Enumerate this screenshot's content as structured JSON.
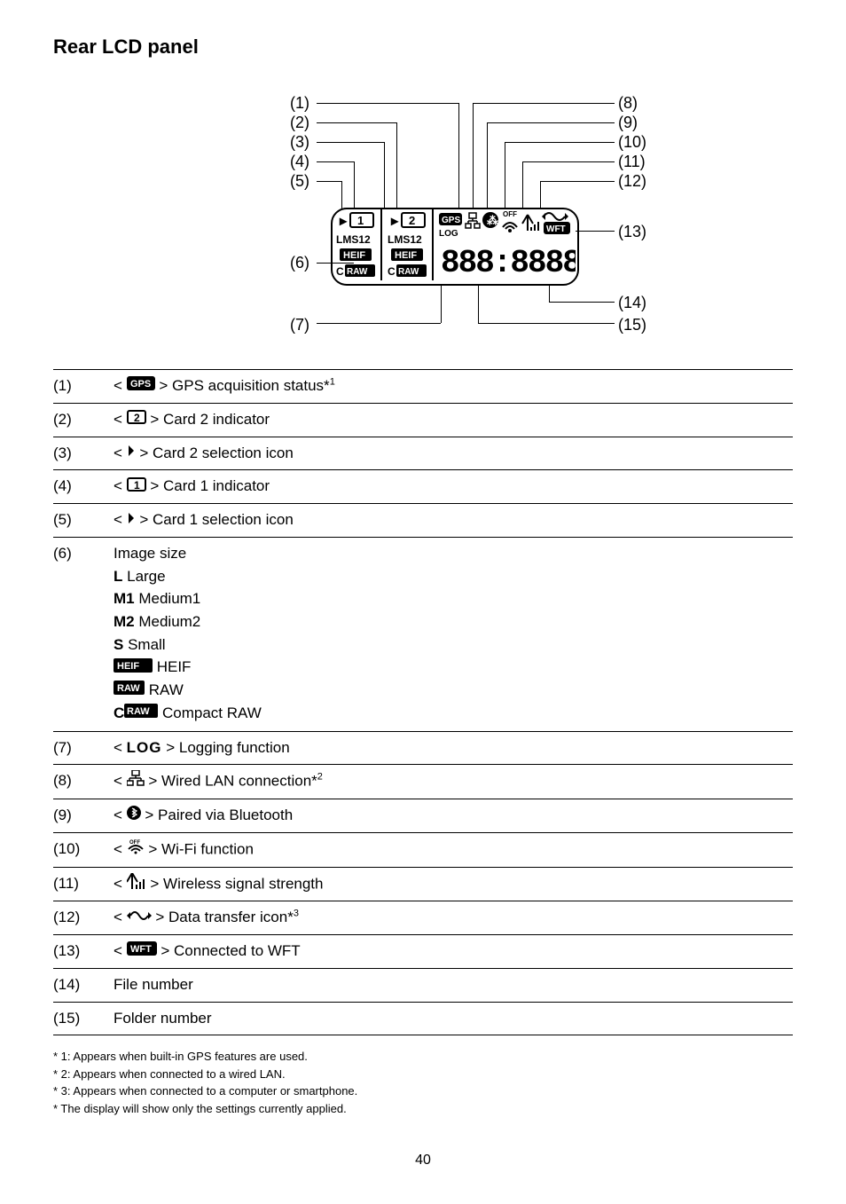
{
  "title": "Rear LCD panel",
  "diagram": {
    "left_labels": [
      "(1)",
      "(2)",
      "(3)",
      "(4)",
      "(5)",
      "(6)",
      "(7)"
    ],
    "right_labels": [
      "(8)",
      "(9)",
      "(10)",
      "(11)",
      "(12)",
      "(13)",
      "(14)",
      "(15)"
    ],
    "lcd_text_1": "1",
    "lcd_text_2": "2",
    "lms1": "LMS12",
    "lms2": "LMS12",
    "heif": "HEIF",
    "raw": "RAW",
    "craw_c": "C",
    "gps": "GPS",
    "log": "LOG",
    "off": "OFF",
    "wft": "WFT",
    "big_digits": "888:8888"
  },
  "rows": [
    {
      "num": "(1)",
      "pre": "< ",
      "glyph": "gps",
      "post": " > GPS acquisition status*",
      "sup": "1"
    },
    {
      "num": "(2)",
      "pre": "< ",
      "glyph": "card2",
      "post": " > Card 2 indicator"
    },
    {
      "num": "(3)",
      "pre": "< ",
      "glyph": "sel",
      "post": " > Card 2 selection icon"
    },
    {
      "num": "(4)",
      "pre": "< ",
      "glyph": "card1",
      "post": " > Card 1 indicator"
    },
    {
      "num": "(5)",
      "pre": "< ",
      "glyph": "sel",
      "post": " > Card 1 selection icon"
    },
    {
      "num": "(6)",
      "desc": "Image size",
      "sizes": [
        {
          "g": "L",
          "t": " Large"
        },
        {
          "g": "M1",
          "t": " Medium1"
        },
        {
          "g": "M2",
          "t": " Medium2"
        },
        {
          "g": "S",
          "t": " Small"
        },
        {
          "g": "HEIF",
          "t": " HEIF",
          "box": true
        },
        {
          "g": "RAW",
          "t": " RAW",
          "box": true
        },
        {
          "g": "CRAW",
          "t": " Compact RAW",
          "craw": true
        }
      ]
    },
    {
      "num": "(7)",
      "pre": "< ",
      "glyph": "log",
      "post": " > Logging function"
    },
    {
      "num": "(8)",
      "pre": "< ",
      "glyph": "lan",
      "post": " > Wired LAN connection*",
      "sup": "2"
    },
    {
      "num": "(9)",
      "pre": "< ",
      "glyph": "bt",
      "post": " > Paired via Bluetooth"
    },
    {
      "num": "(10)",
      "pre": "< ",
      "glyph": "wifi",
      "post": " > Wi-Fi function"
    },
    {
      "num": "(11)",
      "pre": "< ",
      "glyph": "signal",
      "post": " > Wireless signal strength"
    },
    {
      "num": "(12)",
      "pre": "< ",
      "glyph": "xfer",
      "post": " > Data transfer icon*",
      "sup": "3"
    },
    {
      "num": "(13)",
      "pre": "< ",
      "glyph": "wft",
      "post": " > Connected to WFT"
    },
    {
      "num": "(14)",
      "plain": "File number"
    },
    {
      "num": "(15)",
      "plain": "Folder number"
    }
  ],
  "footnotes": [
    "* 1: Appears when built-in GPS features are used.",
    "* 2: Appears when connected to a wired LAN.",
    "* 3: Appears when connected to a computer or smartphone.",
    "* The display will show only the settings currently applied."
  ],
  "page_number": "40",
  "colors": {
    "text": "#000000",
    "bg": "#ffffff",
    "line": "#000000"
  }
}
